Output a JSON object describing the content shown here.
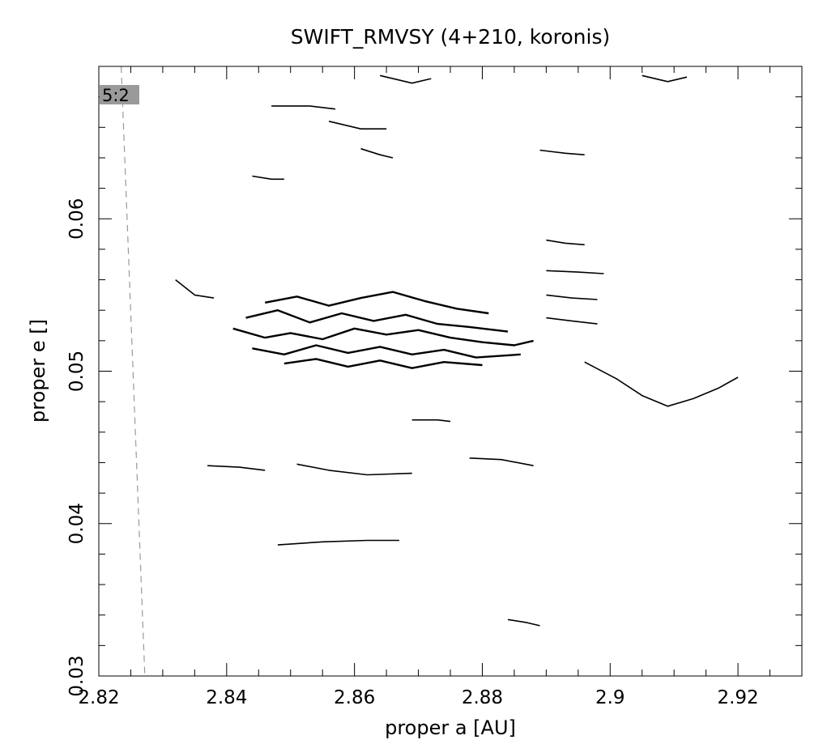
{
  "chart_data": {
    "type": "scatter",
    "title": "SWIFT_RMVSY (4+210, koronis)",
    "xlabel": "proper a [AU]",
    "ylabel": "proper e []",
    "xlim": [
      2.82,
      2.93
    ],
    "ylim": [
      0.03,
      0.07
    ],
    "x_ticks": [
      2.82,
      2.84,
      2.86,
      2.88,
      2.9,
      2.92
    ],
    "x_tick_labels": [
      "2.82",
      "2.84",
      "2.86",
      "2.88",
      "2.9",
      "2.92"
    ],
    "y_ticks": [
      0.03,
      0.04,
      0.05,
      0.06
    ],
    "y_tick_labels": [
      "0.03",
      "0.04",
      "0.05",
      "0.06"
    ],
    "grid": false,
    "annotation": {
      "text": "5:2",
      "a": 2.8232,
      "e": 0.0691
    },
    "resonance_line": {
      "name": "5:2",
      "style": "dashed",
      "points": [
        [
          2.8235,
          0.07
        ],
        [
          2.8272,
          0.03
        ]
      ]
    },
    "series": [
      {
        "kind": "core",
        "points": [
          [
            2.841,
            0.0528
          ],
          [
            2.846,
            0.0522
          ],
          [
            2.85,
            0.0525
          ],
          [
            2.855,
            0.0521
          ],
          [
            2.86,
            0.0528
          ],
          [
            2.865,
            0.0524
          ],
          [
            2.87,
            0.0527
          ],
          [
            2.875,
            0.0522
          ],
          [
            2.88,
            0.0519
          ],
          [
            2.885,
            0.0517
          ],
          [
            2.888,
            0.052
          ]
        ]
      },
      {
        "kind": "core",
        "points": [
          [
            2.843,
            0.0535
          ],
          [
            2.848,
            0.054
          ],
          [
            2.853,
            0.0532
          ],
          [
            2.858,
            0.0538
          ],
          [
            2.863,
            0.0533
          ],
          [
            2.868,
            0.0537
          ],
          [
            2.873,
            0.0531
          ],
          [
            2.878,
            0.0529
          ],
          [
            2.884,
            0.0526
          ]
        ]
      },
      {
        "kind": "core",
        "points": [
          [
            2.844,
            0.0515
          ],
          [
            2.849,
            0.0511
          ],
          [
            2.854,
            0.0517
          ],
          [
            2.859,
            0.0512
          ],
          [
            2.864,
            0.0516
          ],
          [
            2.869,
            0.0511
          ],
          [
            2.874,
            0.0514
          ],
          [
            2.879,
            0.0509
          ],
          [
            2.886,
            0.0511
          ]
        ]
      },
      {
        "kind": "core",
        "points": [
          [
            2.846,
            0.0545
          ],
          [
            2.851,
            0.0549
          ],
          [
            2.856,
            0.0543
          ],
          [
            2.861,
            0.0548
          ],
          [
            2.866,
            0.0552
          ],
          [
            2.871,
            0.0546
          ],
          [
            2.876,
            0.0541
          ],
          [
            2.881,
            0.0538
          ]
        ]
      },
      {
        "kind": "core",
        "points": [
          [
            2.849,
            0.0505
          ],
          [
            2.854,
            0.0508
          ],
          [
            2.859,
            0.0503
          ],
          [
            2.864,
            0.0507
          ],
          [
            2.869,
            0.0502
          ],
          [
            2.874,
            0.0506
          ],
          [
            2.88,
            0.0504
          ]
        ]
      },
      {
        "kind": "track",
        "points": [
          [
            2.89,
            0.0586
          ],
          [
            2.893,
            0.0584
          ],
          [
            2.896,
            0.0583
          ]
        ]
      },
      {
        "kind": "track",
        "points": [
          [
            2.89,
            0.0566
          ],
          [
            2.895,
            0.0565
          ],
          [
            2.899,
            0.0564
          ]
        ]
      },
      {
        "kind": "track",
        "points": [
          [
            2.89,
            0.055
          ],
          [
            2.894,
            0.0548
          ],
          [
            2.898,
            0.0547
          ]
        ]
      },
      {
        "kind": "track",
        "points": [
          [
            2.89,
            0.0535
          ],
          [
            2.894,
            0.0533
          ],
          [
            2.898,
            0.0531
          ]
        ]
      },
      {
        "kind": "track",
        "points": [
          [
            2.896,
            0.0506
          ],
          [
            2.901,
            0.0495
          ],
          [
            2.905,
            0.0484
          ],
          [
            2.909,
            0.0477
          ],
          [
            2.913,
            0.0482
          ],
          [
            2.917,
            0.0489
          ],
          [
            2.92,
            0.0496
          ]
        ]
      },
      {
        "kind": "track",
        "points": [
          [
            2.837,
            0.0438
          ],
          [
            2.842,
            0.0437
          ],
          [
            2.846,
            0.0435
          ]
        ]
      },
      {
        "kind": "track",
        "points": [
          [
            2.861,
            0.0646
          ],
          [
            2.864,
            0.0642
          ],
          [
            2.866,
            0.064
          ]
        ]
      },
      {
        "kind": "track",
        "points": [
          [
            2.851,
            0.0439
          ],
          [
            2.856,
            0.0435
          ],
          [
            2.862,
            0.0432
          ],
          [
            2.869,
            0.0433
          ]
        ]
      },
      {
        "kind": "track",
        "points": [
          [
            2.848,
            0.0386
          ],
          [
            2.855,
            0.0388
          ],
          [
            2.862,
            0.0389
          ],
          [
            2.867,
            0.0389
          ]
        ]
      },
      {
        "kind": "track",
        "points": [
          [
            2.856,
            0.0664
          ],
          [
            2.861,
            0.0659
          ],
          [
            2.865,
            0.0659
          ]
        ]
      },
      {
        "kind": "track",
        "points": [
          [
            2.847,
            0.0674
          ],
          [
            2.853,
            0.0674
          ],
          [
            2.857,
            0.0672
          ]
        ]
      },
      {
        "kind": "track",
        "points": [
          [
            2.864,
            0.0694
          ],
          [
            2.869,
            0.0689
          ],
          [
            2.872,
            0.0692
          ]
        ]
      },
      {
        "kind": "track",
        "points": [
          [
            2.889,
            0.0645
          ],
          [
            2.893,
            0.0643
          ],
          [
            2.896,
            0.0642
          ]
        ]
      },
      {
        "kind": "track",
        "points": [
          [
            2.905,
            0.0694
          ],
          [
            2.909,
            0.069
          ],
          [
            2.912,
            0.0693
          ]
        ]
      },
      {
        "kind": "track",
        "points": [
          [
            2.844,
            0.0628
          ],
          [
            2.847,
            0.0626
          ],
          [
            2.849,
            0.0626
          ]
        ]
      },
      {
        "kind": "track",
        "points": [
          [
            2.878,
            0.0443
          ],
          [
            2.883,
            0.0442
          ],
          [
            2.888,
            0.0438
          ]
        ]
      },
      {
        "kind": "track",
        "points": [
          [
            2.869,
            0.0468
          ],
          [
            2.873,
            0.0468
          ],
          [
            2.875,
            0.0467
          ]
        ]
      },
      {
        "kind": "track",
        "points": [
          [
            2.884,
            0.0337
          ],
          [
            2.887,
            0.0335
          ],
          [
            2.889,
            0.0333
          ]
        ]
      },
      {
        "kind": "track",
        "points": [
          [
            2.832,
            0.056
          ],
          [
            2.835,
            0.055
          ],
          [
            2.838,
            0.0548
          ]
        ]
      }
    ]
  }
}
